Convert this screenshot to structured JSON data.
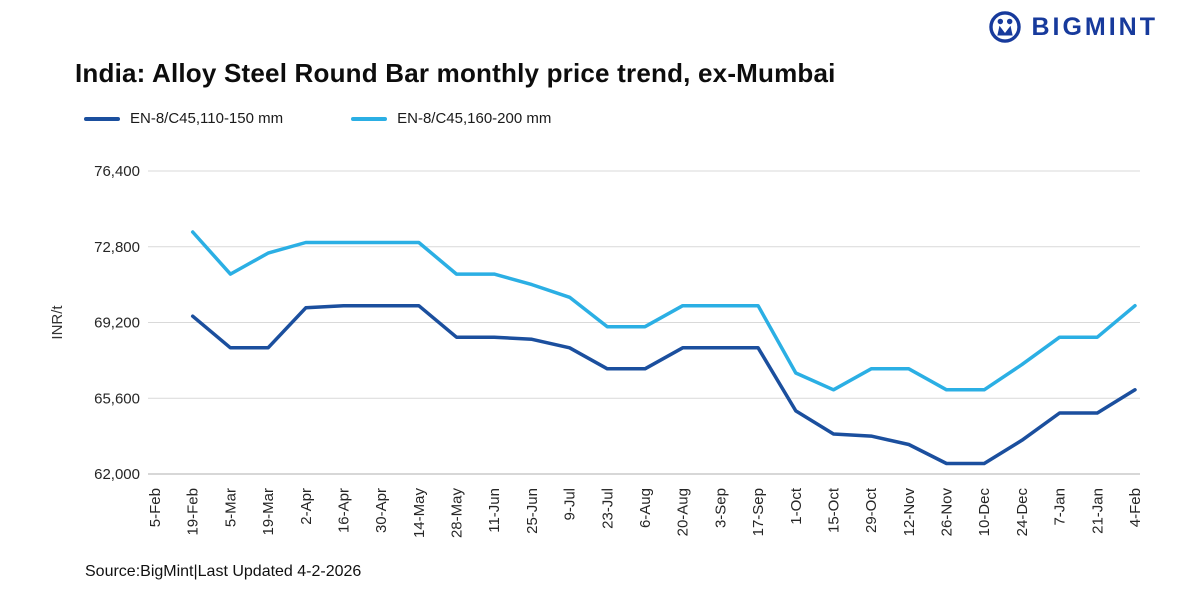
{
  "brand": {
    "name": "BIGMINT",
    "color": "#173a9c"
  },
  "title": "India: Alloy Steel Round Bar monthly price trend, ex-Mumbai",
  "source_note": "Source:BigMint|Last Updated 4-2-2026",
  "chart_data": {
    "type": "line",
    "title": "India: Alloy Steel Round Bar monthly price trend, ex-Mumbai",
    "xlabel": "",
    "ylabel": "INR/t",
    "ylim": [
      62000,
      76400
    ],
    "yticks": [
      62000,
      65600,
      69200,
      72800,
      76400
    ],
    "ytick_labels": [
      "62,000",
      "65,600",
      "69,200",
      "72,800",
      "76,400"
    ],
    "grid": true,
    "legend_position": "top-left",
    "categories": [
      "5-Feb",
      "19-Feb",
      "5-Mar",
      "19-Mar",
      "2-Apr",
      "16-Apr",
      "30-Apr",
      "14-May",
      "28-May",
      "11-Jun",
      "25-Jun",
      "9-Jul",
      "23-Jul",
      "6-Aug",
      "20-Aug",
      "3-Sep",
      "17-Sep",
      "1-Oct",
      "15-Oct",
      "29-Oct",
      "12-Nov",
      "26-Nov",
      "10-Dec",
      "24-Dec",
      "7-Jan",
      "21-Jan",
      "4-Feb"
    ],
    "series": [
      {
        "name": "EN-8/C45,110-150 mm",
        "color": "#1b4f9e",
        "values": [
          null,
          69500,
          68000,
          68000,
          69900,
          70000,
          70000,
          70000,
          68500,
          68500,
          68400,
          68000,
          67000,
          67000,
          68000,
          68000,
          68000,
          65000,
          63900,
          63800,
          63400,
          62500,
          62500,
          63600,
          64900,
          64900,
          66000
        ]
      },
      {
        "name": "EN-8/C45,160-200 mm",
        "color": "#2bafe4",
        "values": [
          null,
          73500,
          71500,
          72500,
          73000,
          73000,
          73000,
          73000,
          71500,
          71500,
          71000,
          70400,
          69000,
          69000,
          70000,
          70000,
          70000,
          66800,
          66000,
          67000,
          67000,
          66000,
          66000,
          67200,
          68500,
          68500,
          70000
        ]
      }
    ]
  }
}
